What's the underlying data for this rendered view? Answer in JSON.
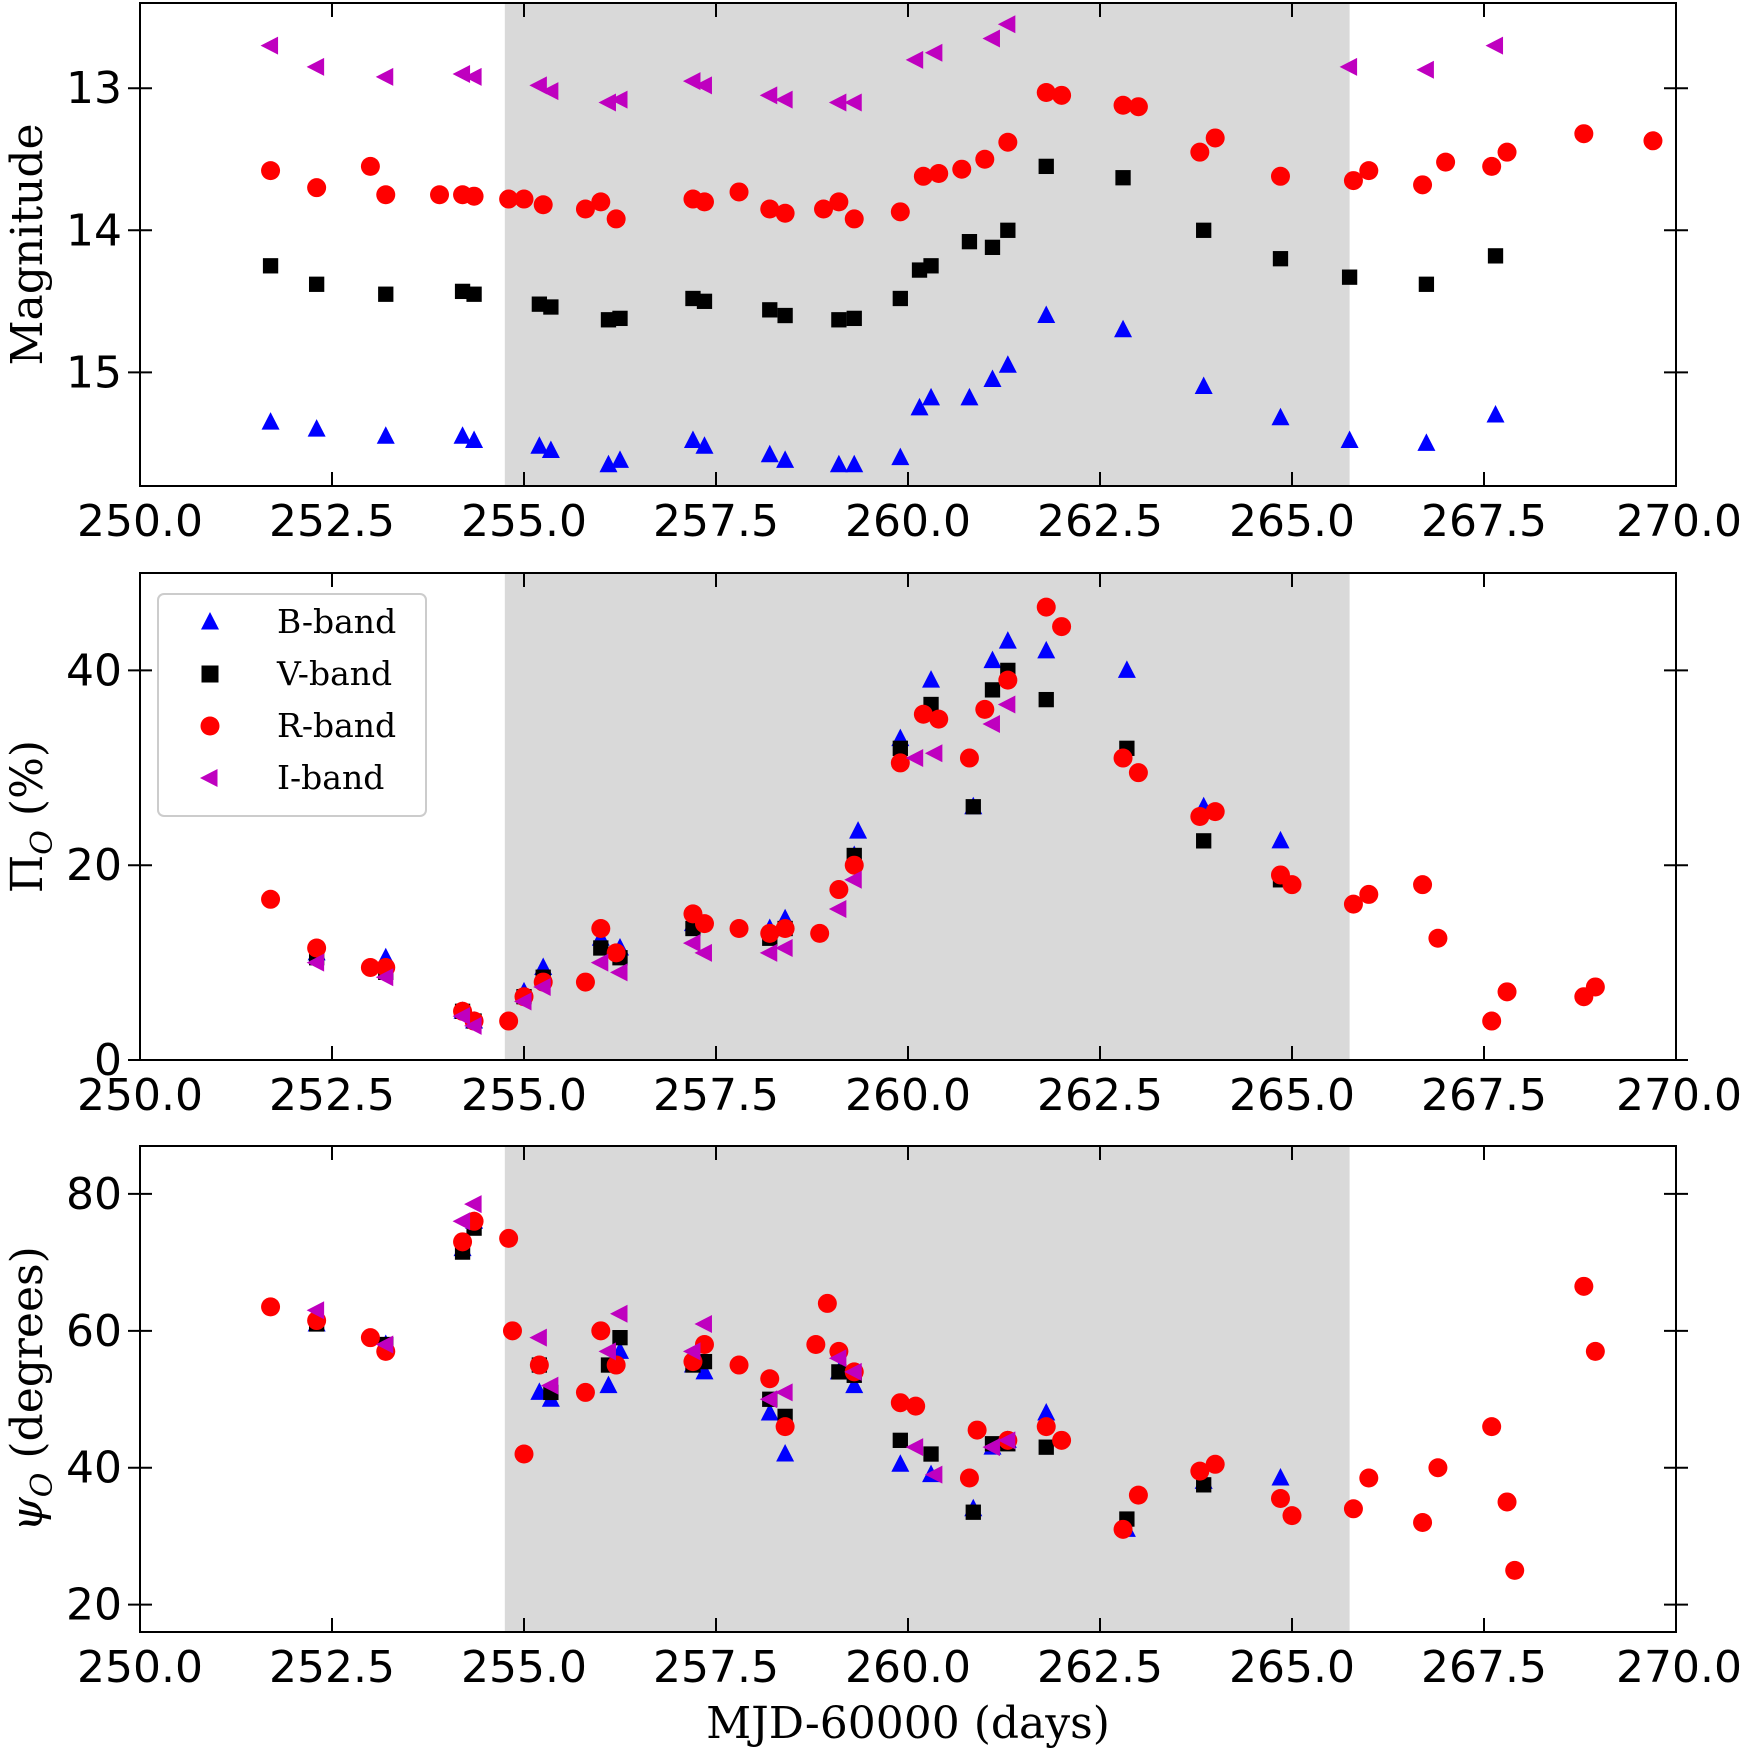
{
  "chart_data": {
    "type": "scatter",
    "xlabel": "MJD-60000 (days)",
    "xlim": [
      250.0,
      270.0
    ],
    "xticks": [
      "250.0",
      "252.5",
      "255.0",
      "257.5",
      "260.0",
      "262.5",
      "265.0",
      "267.5",
      "270.0"
    ],
    "shaded_region": {
      "x": [
        254.75,
        265.75
      ],
      "color": "#d9d9d9"
    },
    "legend": {
      "placement": "upper-left of middle panel",
      "entries": [
        {
          "label": "B-band",
          "marker": "triangle-up",
          "color": "#0000ff"
        },
        {
          "label": "V-band",
          "marker": "square",
          "color": "#000000"
        },
        {
          "label": "R-band",
          "marker": "circle",
          "color": "#ff0000"
        },
        {
          "label": "I-band",
          "marker": "triangle-left",
          "color": "#bf00bf"
        }
      ]
    },
    "panels": [
      {
        "id": "magnitude",
        "ylabel": "Magnitude",
        "ylim": [
          15.8,
          12.4
        ],
        "inverted": true,
        "yticks": [
          13,
          14,
          15
        ],
        "ytick_labels": [
          "13",
          "14",
          "15"
        ],
        "series": [
          {
            "name": "B-band",
            "marker": "triangle-up",
            "color": "#0000ff",
            "x": [
              251.7,
              252.3,
              253.2,
              254.2,
              254.35,
              255.2,
              255.35,
              256.1,
              256.25,
              257.2,
              257.35,
              258.2,
              258.4,
              259.1,
              259.3,
              259.9,
              260.15,
              260.3,
              260.8,
              261.1,
              261.3,
              261.8,
              262.8,
              263.85,
              264.85,
              265.75,
              266.75,
              267.65
            ],
            "y": [
              15.35,
              15.4,
              15.45,
              15.45,
              15.48,
              15.52,
              15.55,
              15.65,
              15.62,
              15.48,
              15.52,
              15.58,
              15.62,
              15.65,
              15.65,
              15.6,
              15.25,
              15.18,
              15.18,
              15.05,
              14.95,
              14.6,
              14.7,
              15.1,
              15.32,
              15.48,
              15.5,
              15.3
            ]
          },
          {
            "name": "V-band",
            "marker": "square",
            "color": "#000000",
            "x": [
              251.7,
              252.3,
              253.2,
              254.2,
              254.35,
              255.2,
              255.35,
              256.1,
              256.25,
              257.2,
              257.35,
              258.2,
              258.4,
              259.1,
              259.3,
              259.9,
              260.15,
              260.3,
              260.8,
              261.1,
              261.3,
              261.8,
              262.8,
              263.85,
              264.85,
              265.75,
              266.75,
              267.65
            ],
            "y": [
              14.25,
              14.38,
              14.45,
              14.43,
              14.45,
              14.52,
              14.54,
              14.63,
              14.62,
              14.48,
              14.5,
              14.56,
              14.6,
              14.63,
              14.62,
              14.48,
              14.28,
              14.25,
              14.08,
              14.12,
              14.0,
              13.55,
              13.63,
              14.0,
              14.2,
              14.33,
              14.38,
              14.18
            ]
          },
          {
            "name": "R-band",
            "marker": "circle",
            "color": "#ff0000",
            "x": [
              251.7,
              252.3,
              253.0,
              253.2,
              253.9,
              254.2,
              254.35,
              254.8,
              255.0,
              255.25,
              255.8,
              256.0,
              256.2,
              257.2,
              257.35,
              257.8,
              258.2,
              258.4,
              258.9,
              259.1,
              259.3,
              259.9,
              260.2,
              260.4,
              260.7,
              261.0,
              261.3,
              261.8,
              262.0,
              262.8,
              263.0,
              263.8,
              264.0,
              264.85,
              265.8,
              266.0,
              266.7,
              267.0,
              267.6,
              267.8,
              268.8,
              269.7
            ],
            "y": [
              13.58,
              13.7,
              13.55,
              13.75,
              13.75,
              13.75,
              13.76,
              13.78,
              13.78,
              13.82,
              13.85,
              13.8,
              13.92,
              13.78,
              13.8,
              13.73,
              13.85,
              13.88,
              13.85,
              13.8,
              13.92,
              13.87,
              13.62,
              13.6,
              13.57,
              13.5,
              13.38,
              13.03,
              13.05,
              13.12,
              13.13,
              13.45,
              13.35,
              13.62,
              13.65,
              13.58,
              13.68,
              13.52,
              13.55,
              13.45,
              13.32,
              13.37
            ]
          },
          {
            "name": "I-band",
            "marker": "triangle-left",
            "color": "#bf00bf",
            "x": [
              251.7,
              252.3,
              253.2,
              254.2,
              254.35,
              255.2,
              255.35,
              256.1,
              256.25,
              257.2,
              257.35,
              258.2,
              258.4,
              259.1,
              259.3,
              260.1,
              260.35,
              261.1,
              261.3,
              265.75,
              266.75,
              267.65
            ],
            "y": [
              12.7,
              12.85,
              12.92,
              12.9,
              12.92,
              12.98,
              13.02,
              13.1,
              13.08,
              12.95,
              12.98,
              13.05,
              13.08,
              13.1,
              13.1,
              12.8,
              12.75,
              12.65,
              12.55,
              12.85,
              12.87,
              12.7
            ]
          }
        ]
      },
      {
        "id": "polarization",
        "ylabel": "Π_O (%)",
        "ylim": [
          0,
          50
        ],
        "yticks": [
          0,
          20,
          40
        ],
        "ytick_labels": [
          "0",
          "20",
          "40"
        ],
        "series": [
          {
            "name": "B-band",
            "marker": "triangle-up",
            "color": "#0000ff",
            "x": [
              252.3,
              253.2,
              254.2,
              254.35,
              255.0,
              255.25,
              256.0,
              256.25,
              257.2,
              258.2,
              258.4,
              259.3,
              259.35,
              259.9,
              260.3,
              260.85,
              261.1,
              261.3,
              261.8,
              262.85,
              263.85,
              264.85
            ],
            "y": [
              11.0,
              10.5,
              5.0,
              4.0,
              7.0,
              9.5,
              12.5,
              11.5,
              14.0,
              13.5,
              14.5,
              21.0,
              23.5,
              33.0,
              39.0,
              26.0,
              41.0,
              43.0,
              42.0,
              40.0,
              26.0,
              22.5
            ]
          },
          {
            "name": "V-band",
            "marker": "square",
            "color": "#000000",
            "x": [
              252.3,
              253.2,
              254.2,
              254.35,
              255.0,
              255.25,
              256.0,
              256.25,
              257.2,
              258.2,
              258.4,
              259.3,
              259.9,
              260.3,
              260.85,
              261.1,
              261.3,
              261.8,
              262.85,
              263.85,
              264.85
            ],
            "y": [
              10.5,
              9.0,
              5.0,
              4.0,
              6.5,
              8.5,
              11.5,
              10.5,
              13.5,
              12.5,
              13.5,
              21.0,
              32.0,
              36.5,
              26.0,
              38.0,
              40.0,
              37.0,
              32.0,
              22.5,
              18.5
            ]
          },
          {
            "name": "R-band",
            "marker": "circle",
            "color": "#ff0000",
            "x": [
              251.7,
              252.3,
              253.0,
              253.2,
              254.2,
              254.35,
              254.8,
              255.0,
              255.25,
              255.8,
              256.0,
              256.2,
              257.2,
              257.35,
              257.8,
              258.2,
              258.4,
              258.85,
              259.1,
              259.3,
              259.9,
              260.2,
              260.4,
              260.8,
              261.0,
              261.3,
              261.8,
              262.0,
              262.8,
              263.0,
              263.8,
              264.0,
              264.85,
              265.0,
              265.8,
              266.0,
              266.7,
              266.9,
              267.6,
              267.8,
              268.8,
              268.95
            ],
            "y": [
              16.5,
              11.5,
              9.5,
              9.5,
              5.0,
              4.0,
              4.0,
              6.5,
              8.0,
              8.0,
              13.5,
              11.0,
              15.0,
              14.0,
              13.5,
              13.0,
              13.5,
              13.0,
              17.5,
              20.0,
              30.5,
              35.5,
              35.0,
              31.0,
              36.0,
              39.0,
              46.5,
              44.5,
              31.0,
              29.5,
              25.0,
              25.5,
              19.0,
              18.0,
              16.0,
              17.0,
              18.0,
              12.5,
              4.0,
              7.0,
              6.5,
              7.5
            ]
          },
          {
            "name": "I-band",
            "marker": "triangle-left",
            "color": "#bf00bf",
            "x": [
              252.3,
              253.2,
              254.2,
              254.35,
              255.0,
              255.25,
              256.0,
              256.25,
              257.2,
              257.35,
              258.2,
              258.4,
              259.1,
              259.3,
              260.1,
              260.35,
              261.1,
              261.3
            ],
            "y": [
              10.0,
              8.5,
              4.5,
              3.5,
              6.0,
              7.5,
              10.0,
              9.0,
              12.0,
              11.0,
              11.0,
              11.5,
              15.5,
              18.5,
              31.0,
              31.5,
              34.5,
              36.5
            ]
          }
        ]
      },
      {
        "id": "angle",
        "ylabel": "ψ_O (degrees)",
        "ylim": [
          16,
          87
        ],
        "yticks": [
          20,
          40,
          60,
          80
        ],
        "ytick_labels": [
          "20",
          "40",
          "60",
          "80"
        ],
        "series": [
          {
            "name": "B-band",
            "marker": "triangle-up",
            "color": "#0000ff",
            "x": [
              252.3,
              253.2,
              254.2,
              254.35,
              255.2,
              255.35,
              256.1,
              256.25,
              257.2,
              257.35,
              258.2,
              258.4,
              259.1,
              259.3,
              259.9,
              260.3,
              260.85,
              261.1,
              261.3,
              261.8,
              262.85,
              263.85,
              264.85
            ],
            "y": [
              61.0,
              58.0,
              72.0,
              76.0,
              51.0,
              50.0,
              52.0,
              57.0,
              55.0,
              54.0,
              48.0,
              42.0,
              54.0,
              52.0,
              40.5,
              39.0,
              34.0,
              43.0,
              44.0,
              48.0,
              31.0,
              38.0,
              38.5
            ]
          },
          {
            "name": "V-band",
            "marker": "square",
            "color": "#000000",
            "x": [
              252.3,
              253.2,
              254.2,
              254.35,
              255.2,
              255.35,
              256.1,
              256.25,
              257.2,
              257.35,
              258.2,
              258.4,
              259.1,
              259.3,
              259.9,
              260.3,
              260.85,
              261.1,
              261.3,
              261.8,
              262.85,
              263.85
            ],
            "y": [
              61.0,
              58.0,
              71.5,
              75.0,
              55.0,
              51.0,
              55.0,
              59.0,
              55.0,
              55.5,
              50.0,
              47.5,
              54.0,
              53.5,
              44.0,
              42.0,
              33.5,
              43.5,
              43.5,
              43.0,
              32.5,
              37.5
            ]
          },
          {
            "name": "R-band",
            "marker": "circle",
            "color": "#ff0000",
            "x": [
              251.7,
              252.3,
              253.0,
              253.2,
              254.2,
              254.35,
              254.8,
              254.85,
              255.0,
              255.2,
              255.8,
              256.0,
              256.2,
              257.2,
              257.35,
              257.8,
              258.2,
              258.4,
              258.8,
              258.95,
              259.1,
              259.3,
              259.9,
              260.1,
              260.8,
              260.9,
              261.3,
              261.8,
              262.0,
              262.8,
              263.0,
              263.8,
              264.0,
              264.85,
              265.0,
              265.8,
              266.0,
              266.7,
              266.9,
              267.6,
              267.8,
              267.9,
              268.8,
              268.95
            ],
            "y": [
              63.5,
              61.5,
              59.0,
              57.0,
              73.0,
              76.0,
              73.5,
              60.0,
              42.0,
              55.0,
              51.0,
              60.0,
              55.0,
              55.5,
              58.0,
              55.0,
              53.0,
              46.0,
              58.0,
              64.0,
              57.0,
              54.0,
              49.5,
              49.0,
              38.5,
              45.5,
              44.0,
              46.0,
              44.0,
              31.0,
              36.0,
              39.5,
              40.5,
              35.5,
              33.0,
              34.0,
              38.5,
              32.0,
              40.0,
              46.0,
              35.0,
              25.0,
              66.5,
              57.0
            ]
          },
          {
            "name": "I-band",
            "marker": "triangle-left",
            "color": "#bf00bf",
            "x": [
              252.3,
              253.2,
              254.2,
              254.35,
              255.2,
              255.35,
              256.1,
              256.25,
              257.2,
              257.35,
              258.2,
              258.4,
              259.1,
              259.3,
              260.1,
              260.35,
              261.1,
              261.3
            ],
            "y": [
              63.0,
              58.0,
              76.0,
              78.5,
              59.0,
              52.0,
              57.0,
              62.5,
              57.0,
              61.0,
              50.0,
              51.0,
              56.0,
              54.0,
              43.0,
              39.0,
              43.0,
              44.0
            ]
          }
        ]
      }
    ]
  }
}
